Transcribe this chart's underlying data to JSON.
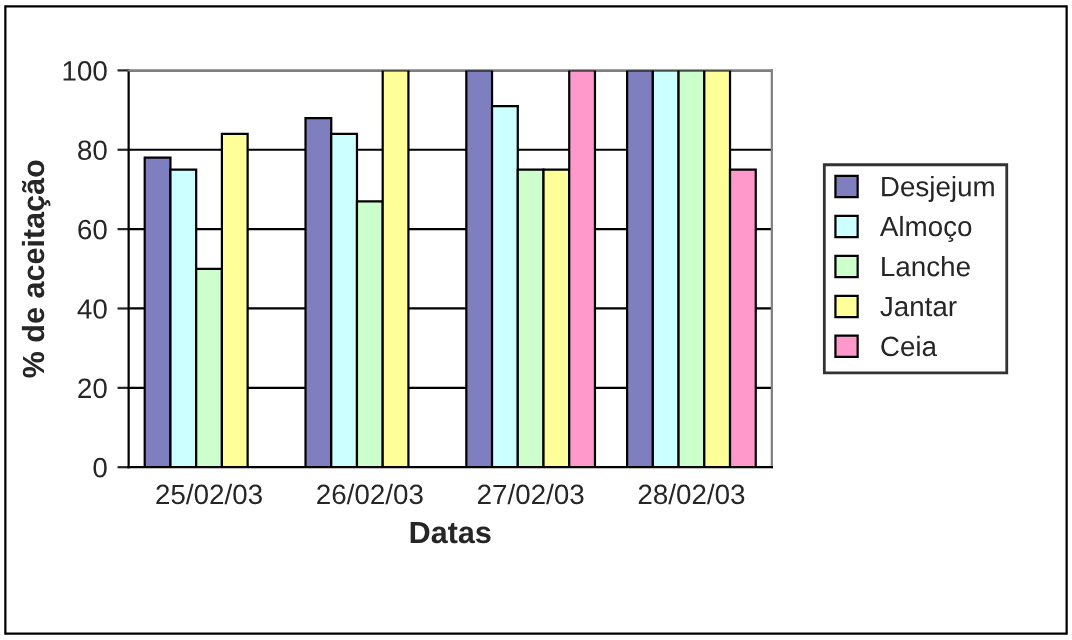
{
  "chart_data": {
    "type": "bar",
    "xlabel": "Datas",
    "ylabel": "% de aceitação",
    "categories": [
      "25/02/03",
      "26/02/03",
      "27/02/03",
      "28/02/03"
    ],
    "series": [
      {
        "name": "Desjejum",
        "color": "#7f7fbf",
        "values": [
          78,
          88,
          100,
          100
        ]
      },
      {
        "name": "Almoço",
        "color": "#ccffff",
        "values": [
          75,
          84,
          91,
          100
        ]
      },
      {
        "name": "Lanche",
        "color": "#ccffcc",
        "values": [
          50,
          67,
          75,
          100
        ]
      },
      {
        "name": "Jantar",
        "color": "#ffff99",
        "values": [
          84,
          100,
          75,
          100
        ]
      },
      {
        "name": "Ceia",
        "color": "#ff99cc",
        "values": [
          null,
          null,
          100,
          75
        ]
      }
    ],
    "ylim": [
      0,
      100
    ],
    "yticks": [
      0,
      20,
      40,
      60,
      80,
      100
    ],
    "grid": "y",
    "legend": "right"
  }
}
